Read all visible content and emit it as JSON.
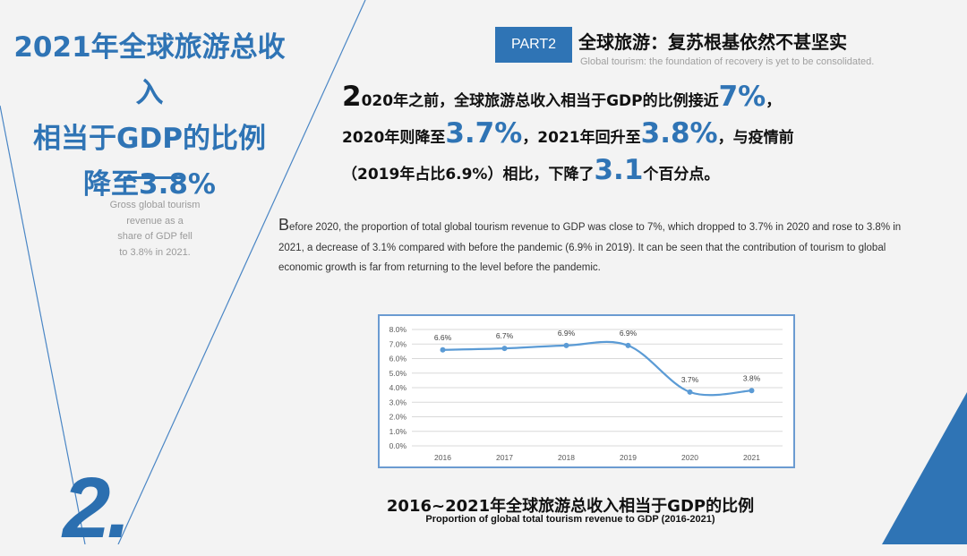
{
  "left": {
    "title_lines": [
      "2021年全球旅游总收入",
      "相当于GDP的比例",
      "降至3.8%"
    ],
    "subtitle_lines": [
      "Gross global tourism",
      "revenue as a",
      "share of GDP fell",
      "to 3.8% in 2021."
    ]
  },
  "header": {
    "part_label": "PART2",
    "title": "全球旅游：复苏根基依然不甚坚实",
    "subtitle": "Global tourism: the foundation of recovery is yet to be consolidated."
  },
  "zh_paragraph": {
    "drop_cap": "2",
    "t1": "020年之前，全球旅游总收入相当于GDP的比例接近",
    "v1": "7%",
    "t2": "，",
    "t3": "2020年则降至",
    "v2": "3.7%",
    "t4": "，2021年回升至",
    "v3": "3.8%",
    "t5": "，与疫情前",
    "t6": "（2019年占比6.9%）相比，下降了",
    "v4": "3.1",
    "t7": "个百分点。"
  },
  "en_paragraph": {
    "drop_cap": "B",
    "text": "efore 2020, the proportion of total global tourism revenue to GDP was close to 7%, which dropped to 3.7% in 2020 and rose to 3.8% in 2021, a decrease of 3.1% compared with before the pandemic (6.9% in 2019). It can be seen that the contribution of tourism to global economic growth is far from returning to the level before the pandemic."
  },
  "chart_data": {
    "type": "line",
    "categories": [
      "2016",
      "2017",
      "2018",
      "2019",
      "2020",
      "2021"
    ],
    "series": [
      {
        "values": [
          6.6,
          6.7,
          6.9,
          6.9,
          3.7,
          3.8
        ],
        "labels": [
          "6.6%",
          "6.7%",
          "6.9%",
          "6.9%",
          "3.7%",
          "3.8%"
        ]
      }
    ],
    "y_ticks": [
      "0.0%",
      "1.0%",
      "2.0%",
      "3.0%",
      "4.0%",
      "5.0%",
      "6.0%",
      "7.0%",
      "8.0%"
    ],
    "ylim": [
      0,
      8
    ],
    "grid": true,
    "title": "2016~2021年全球旅游总收入相当于GDP的比例",
    "subtitle": "Proportion of global total tourism revenue to GDP (2016-2021)",
    "line_color": "#5b9bd5"
  },
  "decoration": {
    "big_number": "2.",
    "accent_color": "#2f74b5"
  }
}
